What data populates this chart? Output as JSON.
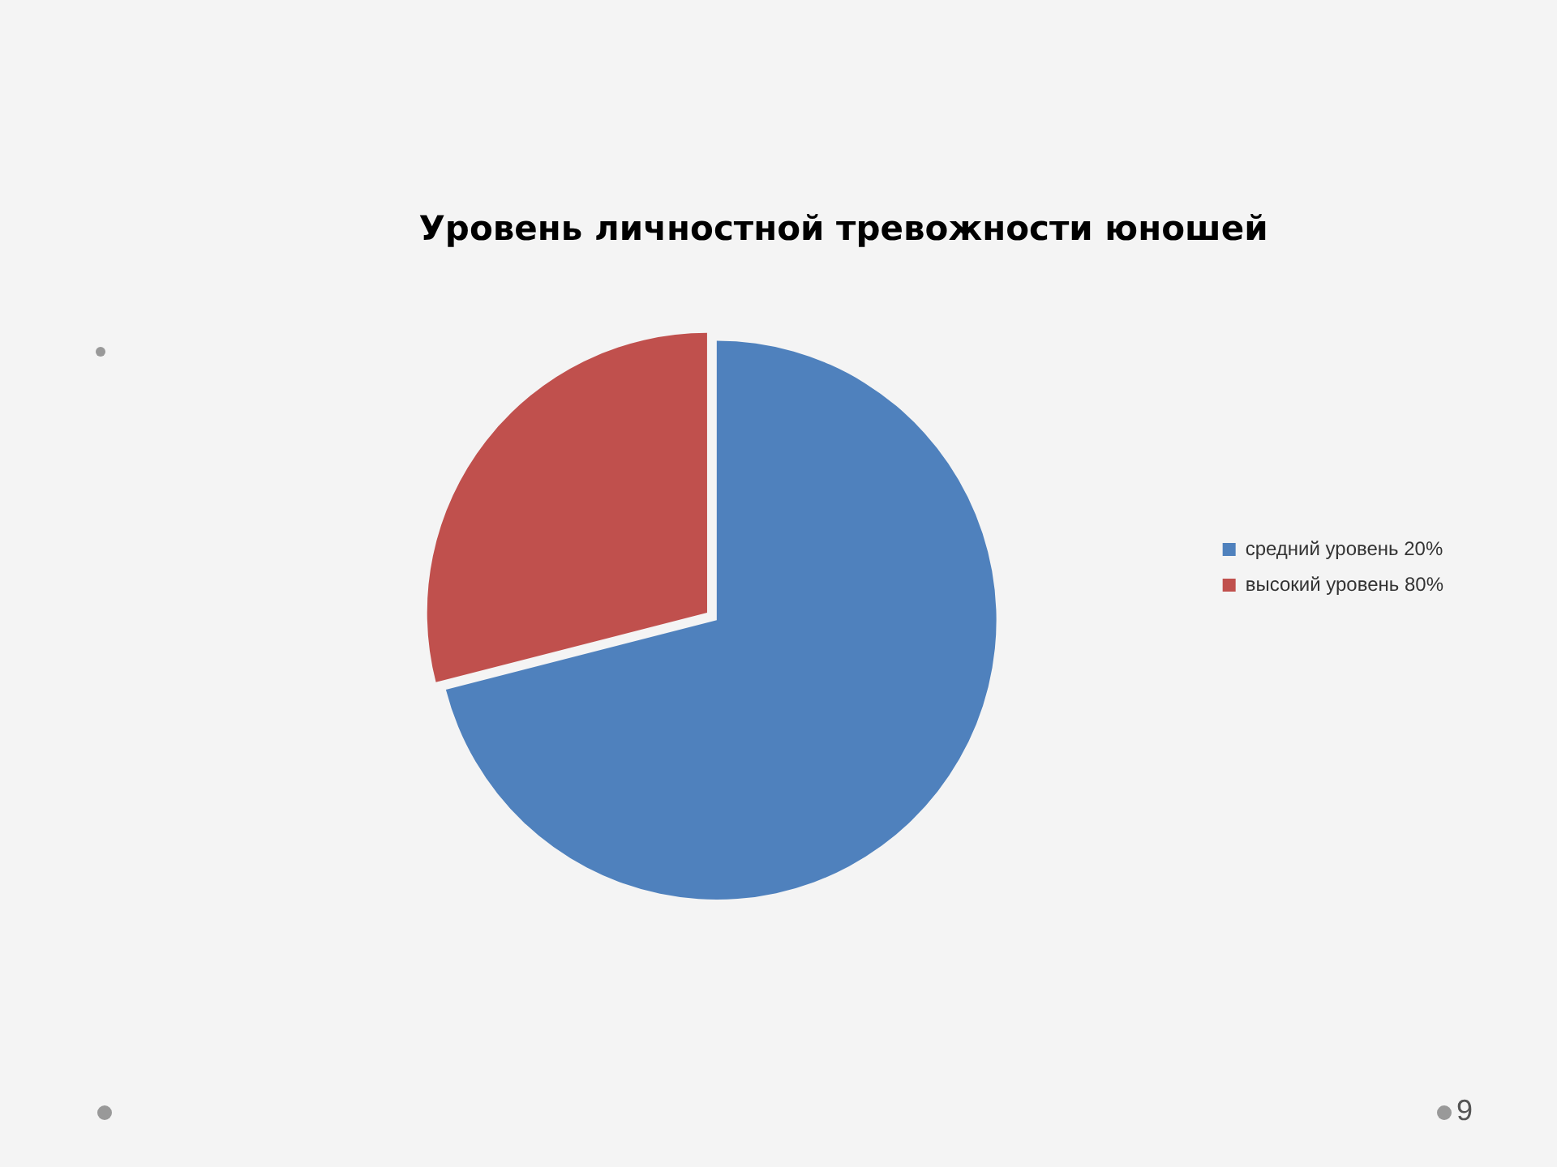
{
  "chart_data": {
    "type": "pie",
    "title": "Уровень личностной тревожности юношей",
    "categories": [
      "средний уровень 20%",
      "высокий уровень 80%"
    ],
    "values": [
      71,
      29
    ],
    "colors": [
      "#4f81bd",
      "#c0504d"
    ],
    "legend": "right",
    "annotations": [
      "9"
    ]
  }
}
